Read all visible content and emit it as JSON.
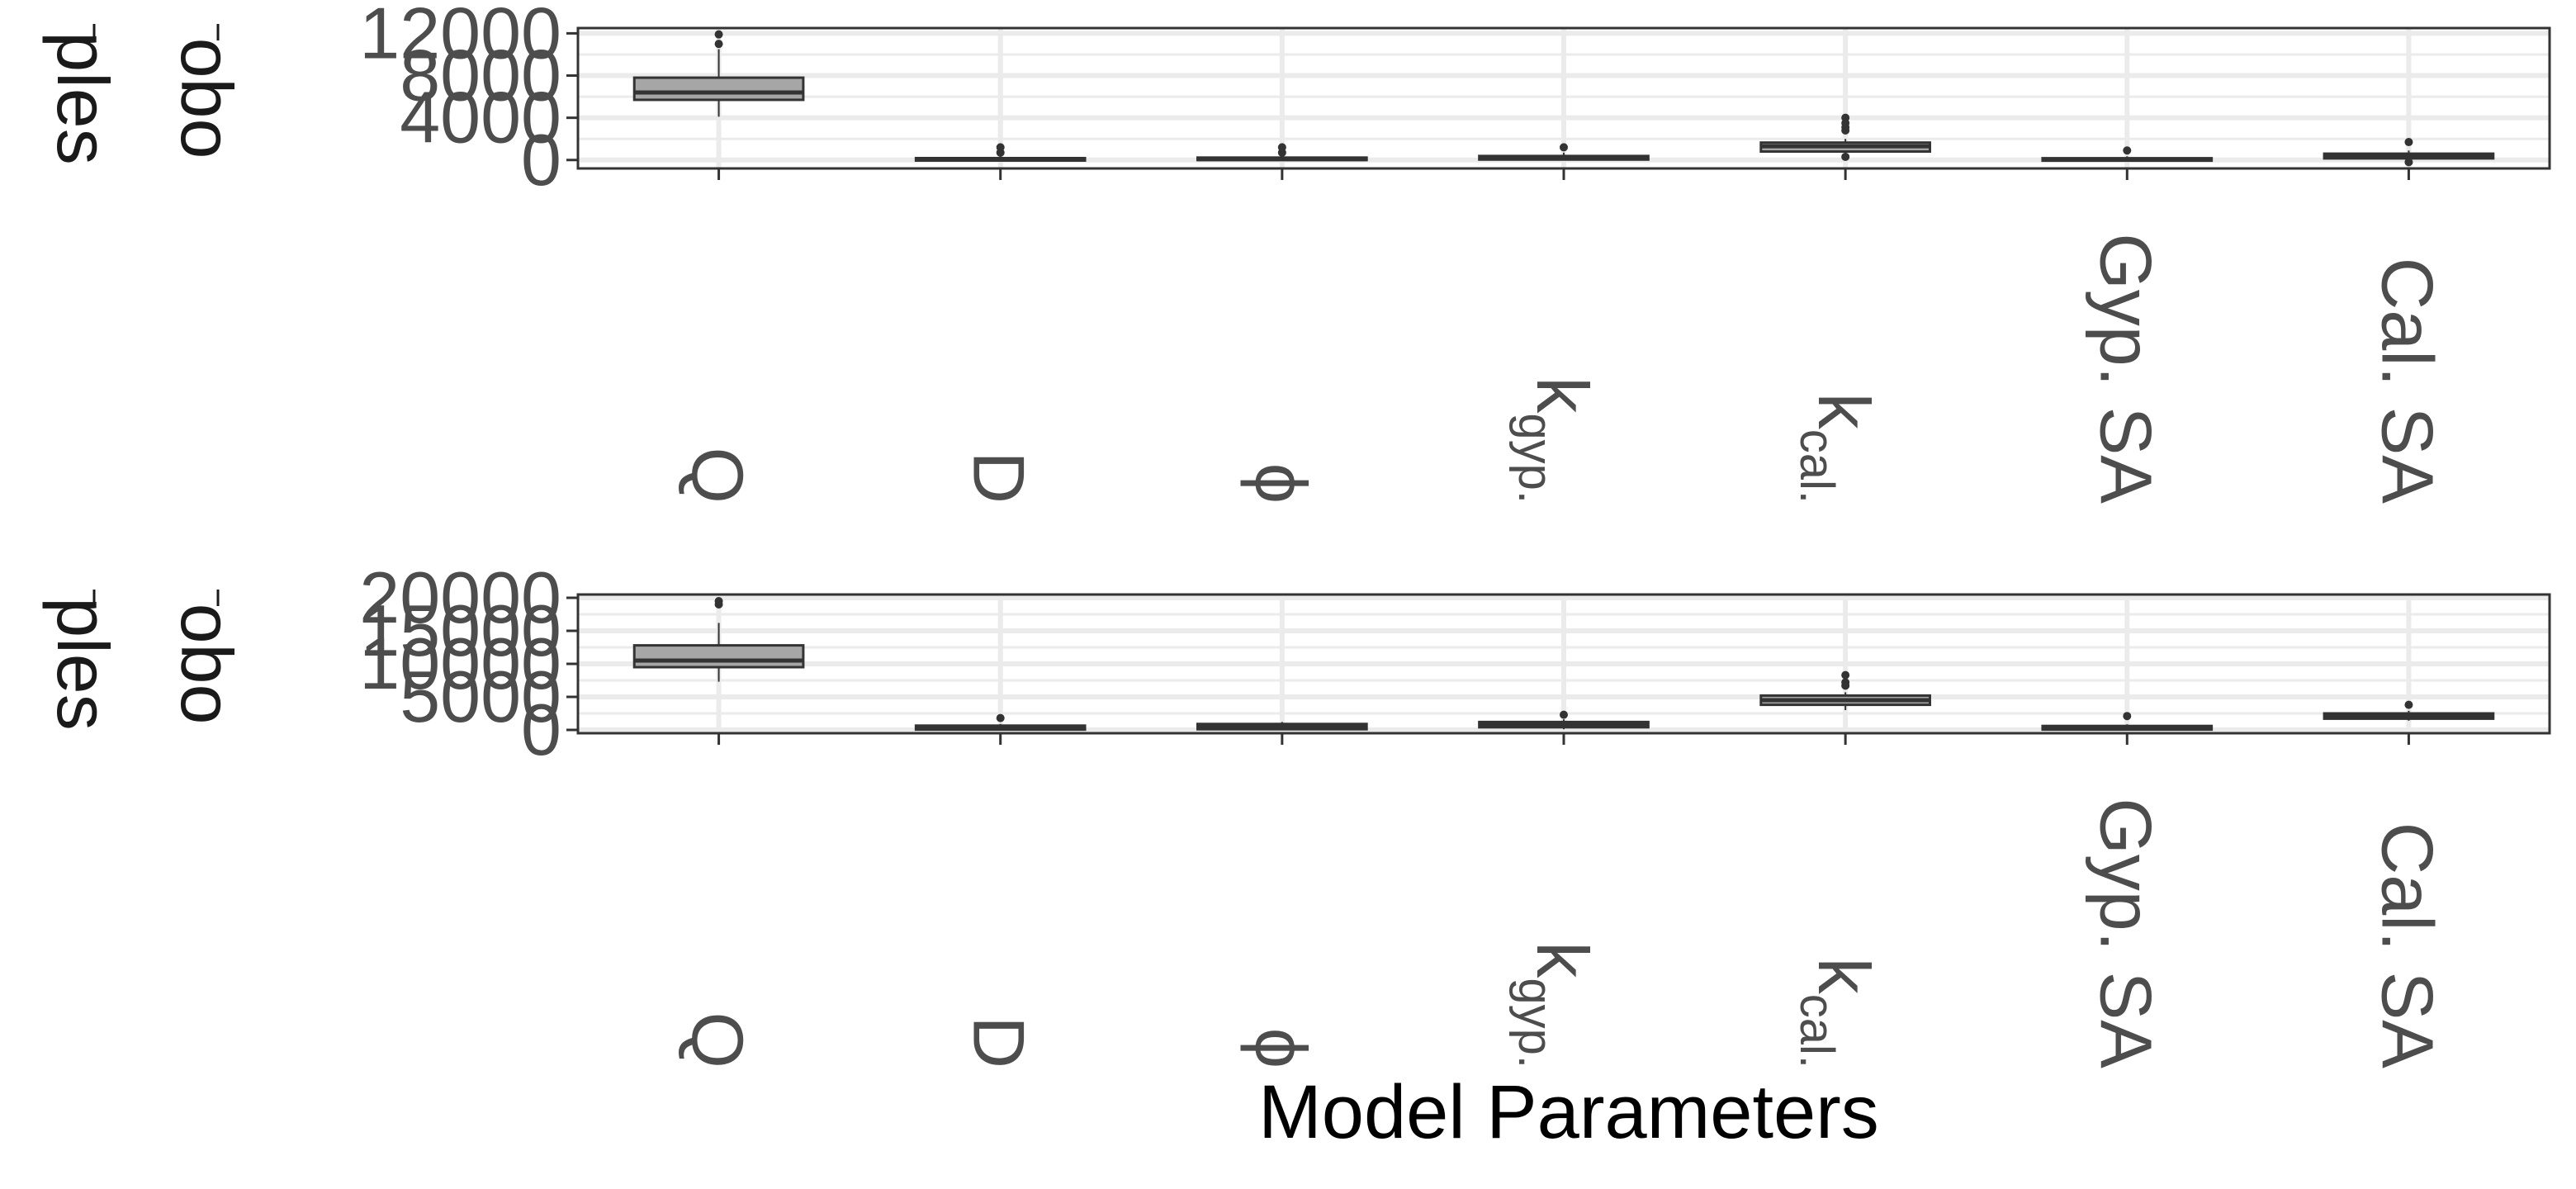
{
  "chart_data": [
    {
      "type": "box",
      "strip_label_lines": [
        "ples",
        "obo"
      ],
      "y_ticks": [
        0,
        4000,
        8000,
        12000
      ],
      "y_tick_labels": [
        "0",
        "4000",
        "8000",
        "12000"
      ],
      "ylim": [
        -800,
        12500
      ],
      "x_tick_labels": [
        "Q",
        "D",
        "ϕ",
        "k_gyp.",
        "k_cal.",
        "Gyp. SA",
        "Cal. SA"
      ],
      "grid": true,
      "boxes": [
        {
          "category": "Q",
          "min": 4100,
          "q1": 5700,
          "median": 6400,
          "q3": 7800,
          "max": 10500,
          "outliers": [
            11000,
            11900
          ]
        },
        {
          "category": "D",
          "min": 0,
          "q1": 0,
          "median": 60,
          "q3": 180,
          "max": 400,
          "outliers": [
            700,
            1200
          ]
        },
        {
          "category": "ϕ",
          "min": 0,
          "q1": 10,
          "median": 80,
          "q3": 230,
          "max": 450,
          "outliers": [
            700,
            1200
          ]
        },
        {
          "category": "k_gyp.",
          "min": 0,
          "q1": 40,
          "median": 160,
          "q3": 380,
          "max": 700,
          "outliers": [
            1200
          ]
        },
        {
          "category": "k_cal.",
          "min": 400,
          "q1": 800,
          "median": 1300,
          "q3": 1650,
          "max": 2000,
          "outliers": [
            300,
            2800,
            3100,
            3500,
            4000
          ]
        },
        {
          "category": "Gyp. SA",
          "min": 0,
          "q1": 0,
          "median": 60,
          "q3": 170,
          "max": 350,
          "outliers": [
            900
          ]
        },
        {
          "category": "Cal. SA",
          "min": 100,
          "q1": 150,
          "median": 350,
          "q3": 600,
          "max": 900,
          "outliers": [
            -200,
            1700
          ]
        }
      ]
    },
    {
      "type": "box",
      "strip_label_lines": [
        "ples",
        "obo"
      ],
      "y_ticks": [
        0,
        5000,
        10000,
        15000,
        20000
      ],
      "y_tick_labels": [
        "0",
        "5000",
        "10000",
        "15000",
        "20000"
      ],
      "ylim": [
        -500,
        20500
      ],
      "x_tick_labels": [
        "Q",
        "D",
        "ϕ",
        "k_gyp.",
        "k_cal.",
        "Gyp. SA",
        "Cal. SA"
      ],
      "grid": true,
      "boxes": [
        {
          "category": "Q",
          "min": 7300,
          "q1": 9500,
          "median": 10500,
          "q3": 12800,
          "max": 16200,
          "outliers": [
            19000,
            19500
          ]
        },
        {
          "category": "D",
          "min": 0,
          "q1": 50,
          "median": 350,
          "q3": 650,
          "max": 900,
          "outliers": [
            1800
          ]
        },
        {
          "category": "ϕ",
          "min": 0,
          "q1": 100,
          "median": 500,
          "q3": 900,
          "max": 1200,
          "outliers": []
        },
        {
          "category": "k_gyp.",
          "min": 100,
          "q1": 400,
          "median": 750,
          "q3": 1200,
          "max": 1600,
          "outliers": [
            2300
          ]
        },
        {
          "category": "k_cal.",
          "min": 3000,
          "q1": 3800,
          "median": 4500,
          "q3": 5200,
          "max": 5700,
          "outliers": [
            6700,
            7200,
            8300
          ]
        },
        {
          "category": "Gyp. SA",
          "min": 0,
          "q1": 50,
          "median": 300,
          "q3": 600,
          "max": 850,
          "outliers": [
            2100
          ]
        },
        {
          "category": "Cal. SA",
          "min": 1400,
          "q1": 1700,
          "median": 2100,
          "q3": 2500,
          "max": 2900,
          "outliers": [
            3800
          ]
        }
      ]
    }
  ],
  "xlabel": "Model Parameters",
  "colors": {
    "box_fill": "#a6a6a6",
    "box_stroke": "#333333",
    "panel_border": "#333333",
    "grid": "#ebebeb",
    "tick_text": "#4d4d4d"
  }
}
